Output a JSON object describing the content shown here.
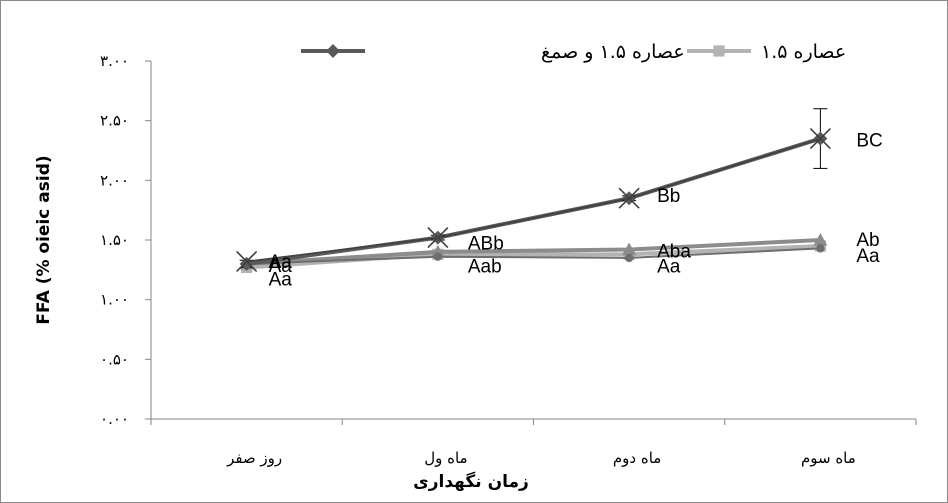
{
  "chart_data": {
    "type": "line",
    "categories": [
      "روز صفر",
      "ماه ول",
      "ماه دوم",
      "ماه سوم"
    ],
    "xlabel": "زمان نگهداری",
    "ylabel": "FFA (% oieic  asid)",
    "ylim": [
      0,
      3
    ],
    "yticks": [
      0,
      0.5,
      1,
      1.5,
      2,
      2.5,
      3
    ],
    "ytick_labels": [
      "۰.۰۰",
      "۰.۵۰",
      "۱.۰۰",
      "۱.۵۰",
      "۲.۰۰",
      "۲.۵۰",
      "۳.۰۰"
    ],
    "legend_position": "top",
    "series": [
      {
        "name": "عصاره ۱.۵ و صمغ",
        "marker": "diamond",
        "color": "#595959",
        "values": [
          1.3,
          1.52,
          1.85,
          2.35
        ],
        "error": [
          0.03,
          0.02,
          0.02,
          0.25
        ],
        "labels": [
          "Aa",
          "ABb",
          "Bb",
          "BC"
        ]
      },
      {
        "name": "عصاره ۱.۵",
        "marker": "square",
        "color": "#b3b3b3",
        "values": [
          1.27,
          1.38,
          1.38,
          1.45
        ],
        "labels": [
          "Aa",
          "Aab",
          "Aa",
          "Aa"
        ]
      },
      {
        "name": "",
        "marker": "x",
        "color": "#3f3f3f",
        "values": [
          1.32,
          1.52,
          1.85,
          2.35
        ],
        "labels": [
          "",
          "",
          "",
          ""
        ]
      },
      {
        "name": "",
        "marker": "triangle",
        "color": "#8c8c8c",
        "values": [
          1.3,
          1.4,
          1.42,
          1.5
        ],
        "labels": [
          "Aa",
          "",
          "Aba",
          "Ab"
        ]
      },
      {
        "name": "",
        "marker": "circle",
        "color": "#6e6e6e",
        "values": [
          1.3,
          1.36,
          1.35,
          1.43
        ],
        "labels": [
          "",
          "",
          "",
          ""
        ]
      }
    ]
  }
}
